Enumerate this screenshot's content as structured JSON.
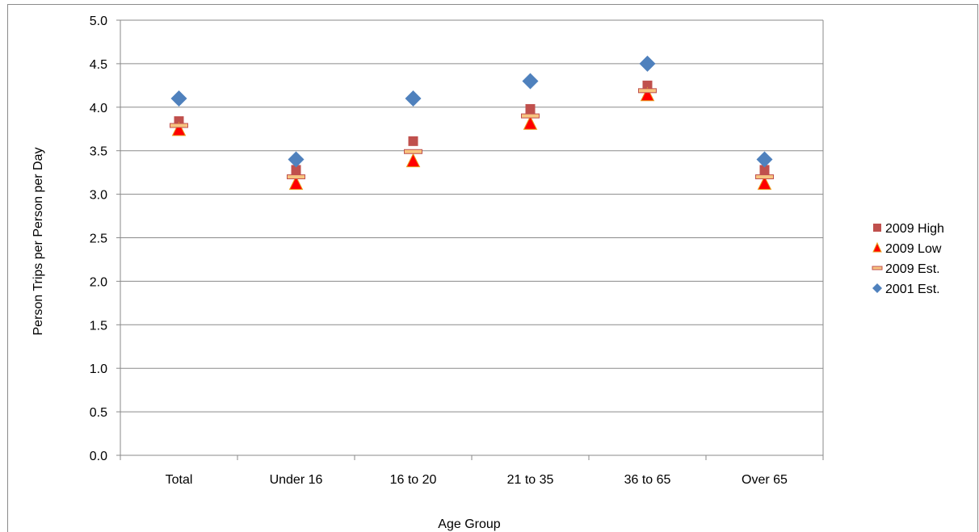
{
  "chart_data": {
    "type": "scatter",
    "categories": [
      "Total",
      "Under 16",
      "16 to 20",
      "21 to 35",
      "36 to 65",
      "Over 65"
    ],
    "series": [
      {
        "name": "2009 High",
        "marker": "square",
        "color": "#c0504d",
        "values": [
          3.84,
          3.28,
          3.61,
          3.98,
          4.25,
          3.28
        ]
      },
      {
        "name": "2009 Low",
        "marker": "triangle",
        "color": "#ff0000",
        "values": [
          3.74,
          3.12,
          3.38,
          3.81,
          4.14,
          3.12
        ]
      },
      {
        "name": "2009 Est.",
        "marker": "dash",
        "color": "#f7c580",
        "values": [
          3.79,
          3.2,
          3.49,
          3.9,
          4.19,
          3.2
        ]
      },
      {
        "name": "2001 Est.",
        "marker": "diamond",
        "color": "#4f81bd",
        "values": [
          4.1,
          3.4,
          4.1,
          4.3,
          4.5,
          3.4
        ]
      }
    ],
    "ylim": [
      0,
      5
    ],
    "yticks": [
      "0.0",
      "0.5",
      "1.0",
      "1.5",
      "2.0",
      "2.5",
      "3.0",
      "3.5",
      "4.0",
      "4.5",
      "5.0"
    ],
    "xlabel": "Age Group",
    "ylabel": "Person Trips per Person per Day",
    "grid": true,
    "legend_position": "right"
  }
}
